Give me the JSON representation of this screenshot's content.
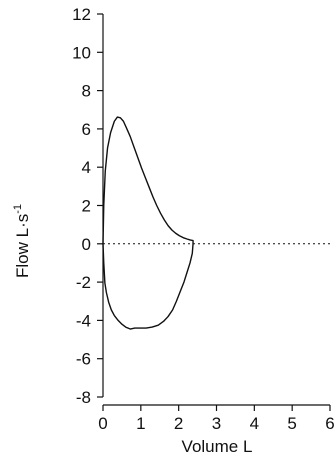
{
  "chart_data": {
    "type": "line",
    "xlabel": "Volume L",
    "ylabel_main": "Flow L·s",
    "ylabel_sup": "-1",
    "xlim": [
      0,
      6
    ],
    "ylim": [
      -8,
      12
    ],
    "x_ticks": [
      0,
      1,
      2,
      3,
      4,
      5,
      6
    ],
    "y_ticks": [
      -8,
      -6,
      -4,
      -2,
      0,
      2,
      4,
      6,
      8,
      10,
      12
    ],
    "reference_line": {
      "y": 0,
      "style": "dotted"
    },
    "grid": false,
    "legend": "none",
    "series": [
      {
        "points": [
          [
            0.0,
            0.0
          ],
          [
            0.02,
            2.0
          ],
          [
            0.06,
            3.8
          ],
          [
            0.12,
            5.0
          ],
          [
            0.2,
            5.8
          ],
          [
            0.3,
            6.4
          ],
          [
            0.38,
            6.62
          ],
          [
            0.46,
            6.58
          ],
          [
            0.54,
            6.4
          ],
          [
            0.62,
            6.05
          ],
          [
            0.72,
            5.6
          ],
          [
            0.82,
            5.05
          ],
          [
            0.92,
            4.5
          ],
          [
            1.02,
            3.95
          ],
          [
            1.12,
            3.45
          ],
          [
            1.22,
            2.95
          ],
          [
            1.32,
            2.45
          ],
          [
            1.42,
            2.0
          ],
          [
            1.52,
            1.6
          ],
          [
            1.62,
            1.25
          ],
          [
            1.72,
            0.95
          ],
          [
            1.82,
            0.72
          ],
          [
            1.92,
            0.55
          ],
          [
            2.02,
            0.42
          ],
          [
            2.12,
            0.32
          ],
          [
            2.22,
            0.25
          ],
          [
            2.3,
            0.2
          ],
          [
            2.38,
            0.17
          ],
          [
            2.38,
            0.0
          ],
          [
            2.36,
            -0.5
          ],
          [
            2.3,
            -1.0
          ],
          [
            2.22,
            -1.5
          ],
          [
            2.14,
            -2.0
          ],
          [
            2.04,
            -2.5
          ],
          [
            1.94,
            -3.0
          ],
          [
            1.84,
            -3.45
          ],
          [
            1.72,
            -3.8
          ],
          [
            1.6,
            -4.05
          ],
          [
            1.46,
            -4.25
          ],
          [
            1.3,
            -4.35
          ],
          [
            1.14,
            -4.4
          ],
          [
            0.98,
            -4.4
          ],
          [
            0.84,
            -4.4
          ],
          [
            0.72,
            -4.45
          ],
          [
            0.6,
            -4.35
          ],
          [
            0.5,
            -4.2
          ],
          [
            0.4,
            -4.0
          ],
          [
            0.3,
            -3.75
          ],
          [
            0.22,
            -3.45
          ],
          [
            0.15,
            -3.05
          ],
          [
            0.09,
            -2.55
          ],
          [
            0.05,
            -2.05
          ],
          [
            0.02,
            -1.0
          ],
          [
            0.0,
            0.0
          ]
        ]
      }
    ]
  }
}
